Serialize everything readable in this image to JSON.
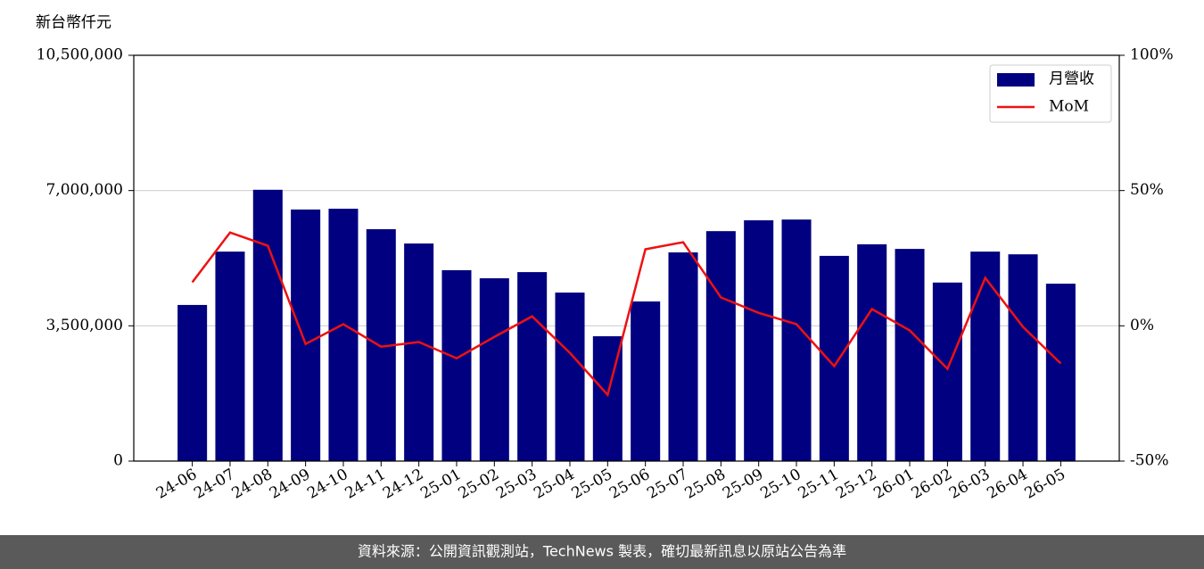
{
  "chart_data": {
    "type": "bar",
    "ylabel": "新台幣仟元",
    "categories": [
      "24-06",
      "24-07",
      "24-08",
      "24-09",
      "24-10",
      "24-11",
      "24-12",
      "25-01",
      "25-02",
      "25-03",
      "25-04",
      "25-05",
      "25-06",
      "25-07",
      "25-08",
      "25-09",
      "25-10",
      "25-11",
      "25-12",
      "26-01",
      "26-02",
      "26-03",
      "26-04",
      "26-05"
    ],
    "series": [
      {
        "name": "月營收",
        "type": "bar",
        "color": "#000080",
        "values": [
          4040000,
          5420000,
          7020000,
          6510000,
          6530000,
          6000000,
          5630000,
          4940000,
          4730000,
          4890000,
          4360000,
          3230000,
          4130000,
          5400000,
          5950000,
          6230000,
          6250000,
          5310000,
          5610000,
          5490000,
          4620000,
          5420000,
          5350000,
          4590000
        ]
      },
      {
        "name": "MoM",
        "type": "line",
        "axis": "y2",
        "color": "#ee1111",
        "values": [
          16.1,
          34.5,
          29.6,
          -6.7,
          0.6,
          -7.7,
          -6.0,
          -12.0,
          -4.1,
          3.5,
          -10.0,
          -25.5,
          28.3,
          30.9,
          10.5,
          4.8,
          0.6,
          -14.9,
          6.2,
          -1.7,
          -15.9,
          17.7,
          -0.4,
          -13.9
        ]
      }
    ],
    "ylim": [
      0,
      10500000
    ],
    "yticks": [
      0,
      {
        "value": 3500000,
        "label": "3,500,000"
      },
      {
        "value": 7000000,
        "label": "7,000,000"
      },
      {
        "value": 10500000,
        "label": "10,500,000"
      }
    ],
    "y2lim": [
      -50,
      100
    ],
    "y2ticks": [
      {
        "value": -50,
        "label": "-50%"
      },
      {
        "value": 0,
        "label": "0%"
      },
      {
        "value": 50,
        "label": "50%"
      },
      {
        "value": 100,
        "label": "100%"
      }
    ],
    "grid": true,
    "legend": "upper right"
  },
  "footer": {
    "text": "資料來源：公開資訊觀測站，TechNews 製表，確切最新訊息以原站公告為準"
  }
}
